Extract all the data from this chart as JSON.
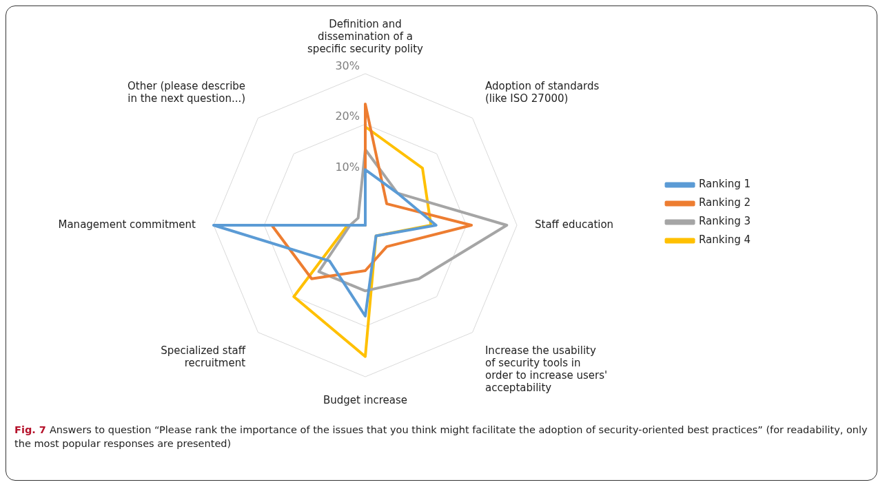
{
  "chart_data": {
    "type": "radar",
    "categories": [
      "Definition and dissemination of a specific security polity",
      "Adoption of standards (like ISO 27000)",
      "Staff education",
      "Increase the usability of security tools in order to increase users' acceptability",
      "Budget increase",
      "Specialized staff recruitment",
      "Management commitment",
      "Other (please describe in the next question...)"
    ],
    "series": [
      {
        "name": "Ranking 1",
        "color": "#5b9bd5",
        "values": [
          11,
          9,
          14,
          3,
          18,
          10,
          30,
          0
        ]
      },
      {
        "name": "Ranking 2",
        "color": "#ed7d31",
        "values": [
          24,
          6,
          21,
          6,
          9,
          15,
          18.5,
          0
        ]
      },
      {
        "name": "Ranking 3",
        "color": "#a5a5a5",
        "values": [
          15,
          9,
          28,
          15,
          13,
          13,
          3,
          2
        ]
      },
      {
        "name": "Ranking 4",
        "color": "#ffc000",
        "values": [
          19.5,
          16,
          13,
          3,
          26,
          20,
          3.5,
          0
        ]
      }
    ],
    "ylim": [
      0,
      30
    ],
    "yticks": [
      {
        "value": 10,
        "label": "10%"
      },
      {
        "value": 20,
        "label": "20%"
      },
      {
        "value": 30,
        "label": "30%"
      }
    ],
    "grid": true,
    "legend": "right",
    "marker": "none",
    "line_style": "solid",
    "annotations": [
      "Fig. 7",
      "Answers to question “Please rank the importance of the issues that you think might facilitate the adoption of security-oriented best practices” (for readability, only the most popular responses are presented)"
    ]
  }
}
